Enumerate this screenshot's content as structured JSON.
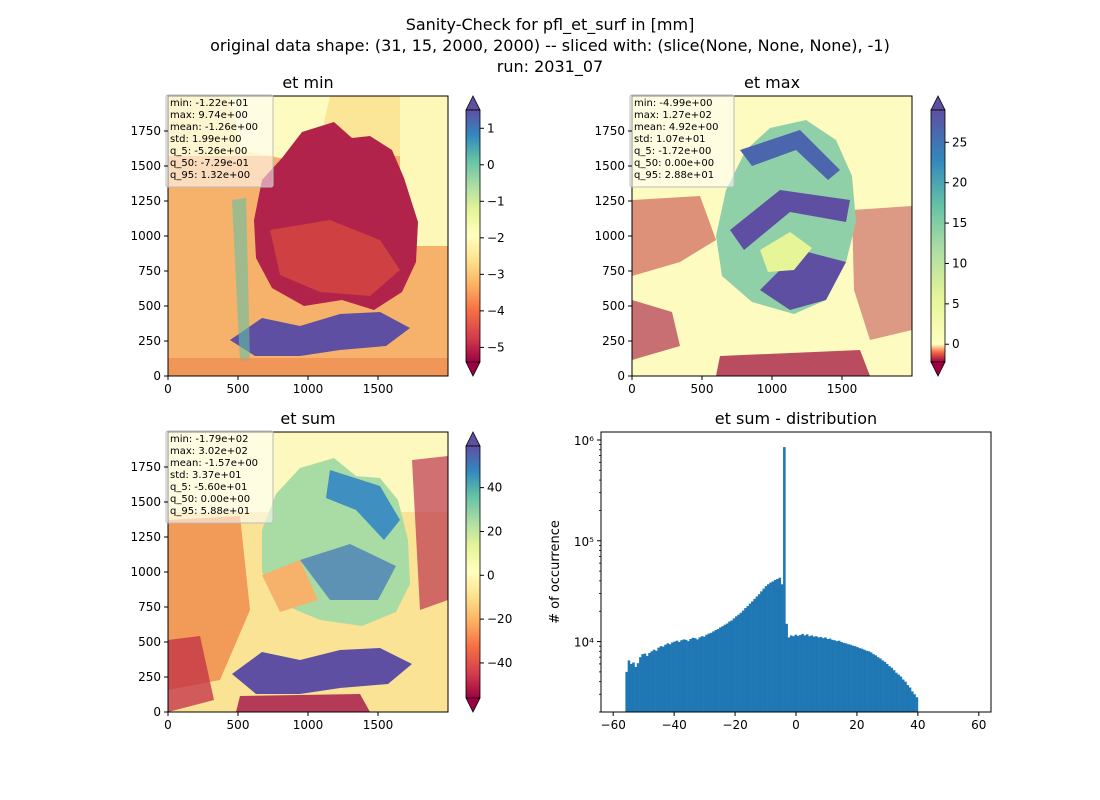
{
  "suptitle": {
    "line1": "Sanity-Check for pfl_et_surf in [mm]",
    "line2": "original data shape: (31, 15, 2000, 2000) -- sliced with: (slice(None, None, None), -1)",
    "line3": "run: 2031_07"
  },
  "chart_data": [
    {
      "type": "heatmap",
      "title": "et min",
      "cmap": "Spectral",
      "xlim": [
        0,
        2000
      ],
      "ylim": [
        0,
        2000
      ],
      "xticks": [
        "0",
        "500",
        "1000",
        "1500"
      ],
      "yticks": [
        "0",
        "250",
        "500",
        "750",
        "1000",
        "1250",
        "1500",
        "1750"
      ],
      "colorbar": {
        "range": [
          -5.4,
          1.5
        ],
        "ticks": [
          "1",
          "0",
          "−1",
          "−2",
          "−3",
          "−4",
          "−5"
        ],
        "tick_values": [
          1,
          0,
          -1,
          -2,
          -3,
          -4,
          -5
        ]
      },
      "stats": [
        "min: -1.22e+01",
        "max: 9.74e+00",
        "mean: -1.26e+00",
        "std: 1.99e+00",
        "q_5: -5.26e+00",
        "q_50: -7.29e-01",
        "q_95: 1.32e+00"
      ]
    },
    {
      "type": "heatmap",
      "title": "et max",
      "cmap": "Spectral",
      "xlim": [
        0,
        2000
      ],
      "ylim": [
        0,
        2000
      ],
      "xticks": [
        "0",
        "500",
        "1000",
        "1500"
      ],
      "yticks": [
        "0",
        "250",
        "500",
        "750",
        "1000",
        "1250",
        "1500",
        "1750"
      ],
      "colorbar": {
        "range": [
          -2.2,
          29
        ],
        "ticks": [
          "25",
          "20",
          "15",
          "10",
          "5",
          "0"
        ],
        "tick_values": [
          25,
          20,
          15,
          10,
          5,
          0
        ]
      },
      "stats": [
        "min: -4.99e+00",
        "max: 1.27e+02",
        "mean: 4.92e+00",
        "std: 1.07e+01",
        "q_5: -1.72e+00",
        "q_50: 0.00e+00",
        "q_95: 2.88e+01"
      ]
    },
    {
      "type": "heatmap",
      "title": "et sum",
      "cmap": "Spectral",
      "xlim": [
        0,
        2000
      ],
      "ylim": [
        0,
        2000
      ],
      "xticks": [
        "0",
        "500",
        "1000",
        "1500"
      ],
      "yticks": [
        "0",
        "250",
        "500",
        "750",
        "1000",
        "1250",
        "1500",
        "1750"
      ],
      "colorbar": {
        "range": [
          -56,
          59
        ],
        "ticks": [
          "40",
          "20",
          "0",
          "−20",
          "−40"
        ],
        "tick_values": [
          40,
          20,
          0,
          -20,
          -40
        ]
      },
      "stats": [
        "min: -1.79e+02",
        "max: 3.02e+02",
        "mean: -1.57e+00",
        "std: 3.37e+01",
        "q_5: -5.60e+01",
        "q_50: 0.00e+00",
        "q_95: 5.88e+01"
      ]
    },
    {
      "type": "histogram",
      "title": "et sum - distribution",
      "ylabel": "# of occurrence",
      "yscale": "log",
      "xlim": [
        -64,
        64
      ],
      "ylim": [
        2000,
        1200000
      ],
      "xticks": [
        "−60",
        "−40",
        "−20",
        "0",
        "20",
        "40",
        "60"
      ],
      "xtick_values": [
        -60,
        -40,
        -20,
        0,
        20,
        40,
        60
      ],
      "yticks": [
        "10⁴",
        "10⁵",
        "10⁶"
      ],
      "ytick_values": [
        10000,
        100000,
        1000000
      ],
      "bar_color": "#1f77b4",
      "bins": {
        "start": -56,
        "width": 0.75,
        "counts": [
          5000,
          6500,
          6000,
          6200,
          5600,
          6100,
          7000,
          7500,
          7600,
          7200,
          7700,
          8000,
          8300,
          8100,
          8700,
          9000,
          8900,
          9300,
          9600,
          9400,
          9800,
          10000,
          10200,
          9900,
          10300,
          10500,
          10400,
          10100,
          10600,
          10900,
          10800,
          10500,
          11000,
          11300,
          11200,
          11700,
          12000,
          12200,
          12600,
          13000,
          13300,
          13800,
          14200,
          14700,
          15100,
          15800,
          16200,
          17000,
          17800,
          18500,
          19300,
          20300,
          21500,
          22500,
          23800,
          25000,
          26500,
          28000,
          29500,
          31500,
          33500,
          35500,
          37000,
          38500,
          39500,
          40800,
          41800,
          43000,
          37000,
          850000,
          15000,
          11000,
          11500,
          11300,
          11700,
          11400,
          11600,
          11900,
          11500,
          11800,
          11300,
          11500,
          11200,
          11300,
          11000,
          11100,
          10800,
          11000,
          10600,
          10700,
          10400,
          10300,
          10100,
          10200,
          9900,
          9700,
          9600,
          9400,
          9300,
          9100,
          9000,
          8800,
          8600,
          8500,
          8300,
          8100,
          8000,
          7800,
          7500,
          7300,
          7000,
          6800,
          6500,
          6300,
          6000,
          5700,
          5500,
          5200,
          4900,
          4700,
          4500,
          4200,
          4000,
          3700,
          3500,
          3200,
          3000,
          2800
        ]
      }
    }
  ]
}
